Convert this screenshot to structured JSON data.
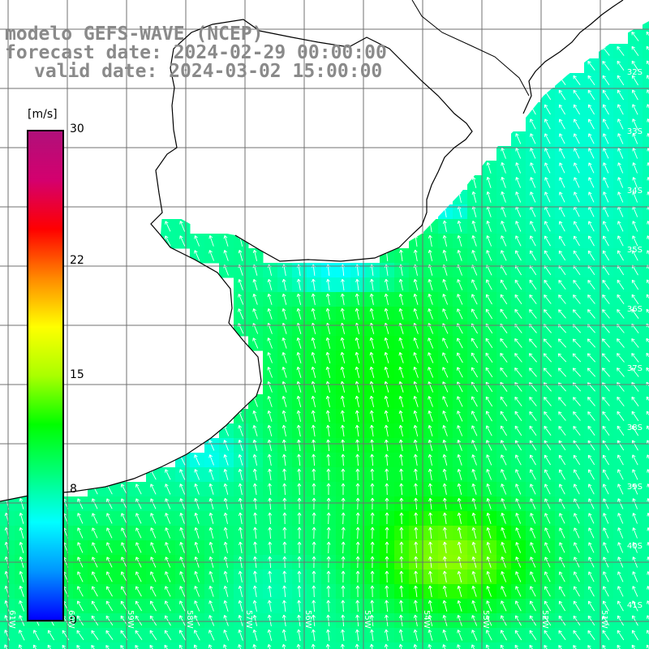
{
  "titles": {
    "line1": "modelo GEFS-WAVE (NCEP)",
    "line2": "forecast date: 2024-02-29 00:00:00",
    "line3": "valid date: 2024-03-02 15:00:00"
  },
  "legend": {
    "unit": "[m/s]",
    "ticks": [
      {
        "value": 30,
        "label": "30"
      },
      {
        "value": 22,
        "label": "22"
      },
      {
        "value": 15,
        "label": "15"
      },
      {
        "value": 8,
        "label": "8"
      },
      {
        "value": 0,
        "label": "0"
      }
    ],
    "colors": [
      "#0000ff",
      "#0096ff",
      "#00ffff",
      "#00ff7a",
      "#00ff00",
      "#aaff00",
      "#ffff00",
      "#ff8800",
      "#ff0000",
      "#d4006e",
      "#b0107a"
    ]
  },
  "map": {
    "lat_labels": [
      "32S",
      "33S",
      "34S",
      "35S",
      "36S",
      "37S",
      "38S",
      "39S",
      "40S",
      "41S"
    ],
    "lon_labels": [
      "61W",
      "60W",
      "59W",
      "58W",
      "57W",
      "56W",
      "55W",
      "54W",
      "53W",
      "52W",
      "51W"
    ],
    "land_color": "#ffffff",
    "coast_color": "#000000",
    "grid_color": "#707070",
    "arrow_color": "#ffffff",
    "wind_direction_deg": 200
  }
}
